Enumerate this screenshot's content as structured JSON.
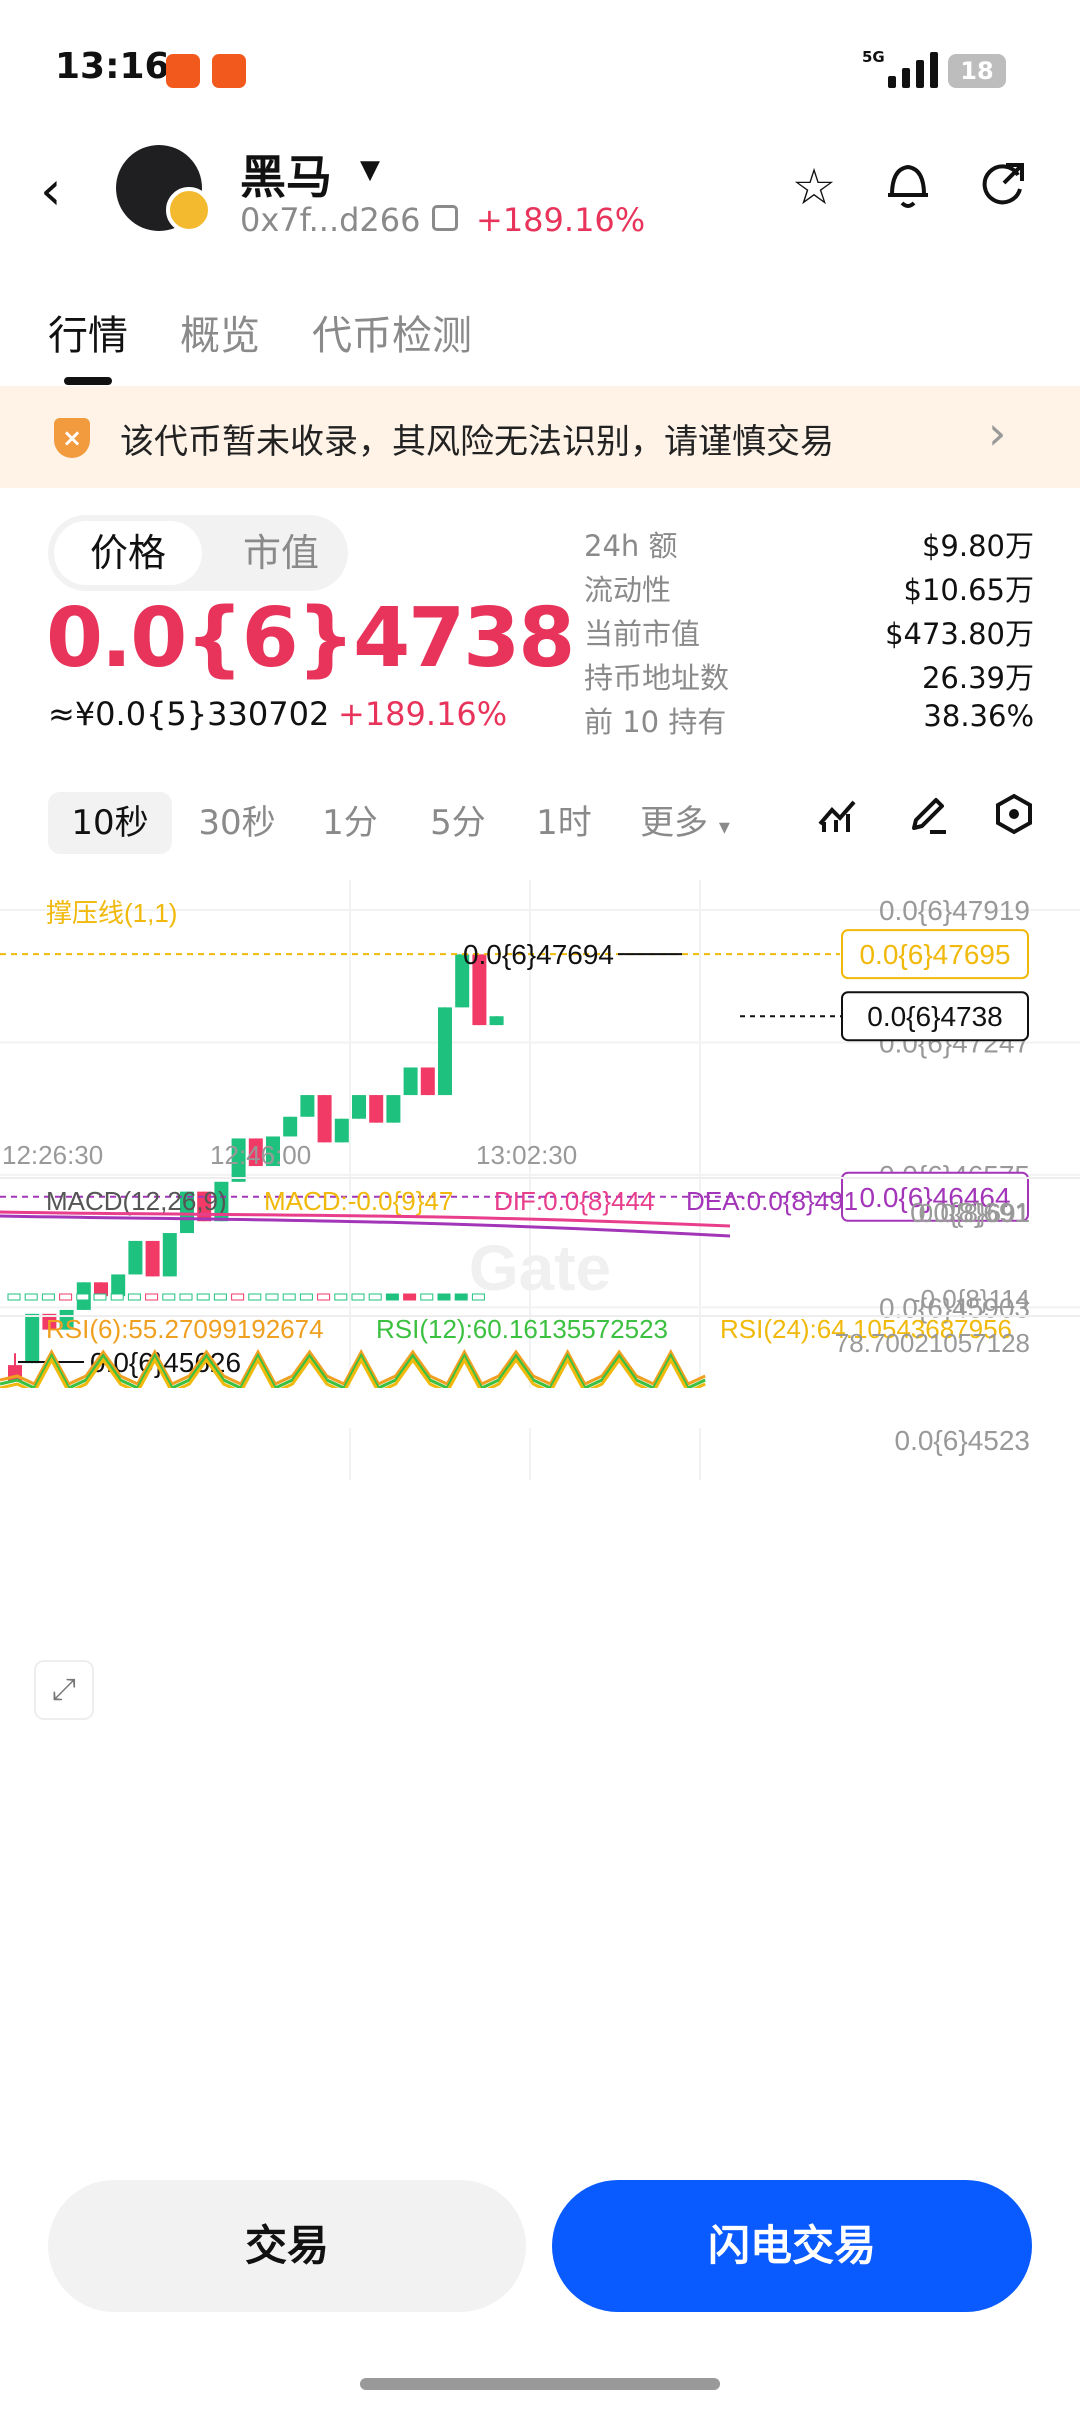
{
  "status_bar": {
    "time": "13:16",
    "network": "5G",
    "battery": "18"
  },
  "header": {
    "token_name": "黑马",
    "address": "0x7f...d266",
    "change": "+189.16%"
  },
  "tabs": [
    "行情",
    "概览",
    "代币检测"
  ],
  "notice": {
    "text": "该代币暂未收录，其风险无法识别，请谨慎交易"
  },
  "price_toggle": {
    "active": "价格",
    "inactive": "市值"
  },
  "price": {
    "value": "0.0{6}4738",
    "cny": "≈¥0.0{5}330702",
    "change": "+189.16%"
  },
  "stats": [
    {
      "label": "24h  额",
      "value": "$9.80万"
    },
    {
      "label": "流动性",
      "value": "$10.65万"
    },
    {
      "label": "当前市值",
      "value": "$473.80万"
    },
    {
      "label": "持币地址数",
      "value": "26.39万"
    },
    {
      "label": "前 10 持有",
      "value": "38.36%"
    }
  ],
  "intervals": [
    "10秒",
    "30秒",
    "1分",
    "5分",
    "1时",
    "更多"
  ],
  "chart": {
    "indicator_label": "撑压线(1,1)",
    "watermark": "Gate",
    "price_axis": [
      "0.0{6}47919",
      "0.0{6}47247",
      "0.0{6}46575",
      "0.0{6}45903",
      "0.0{6}4523"
    ],
    "resistance_label": "0.0{6}47695",
    "support_label": "0.0{6}46464",
    "current_label": "0.0{6}4738",
    "high_label": "0.0{6}47694",
    "low_label": "0.0{6}45626",
    "time_axis": [
      "12:26:30",
      "12:46:00",
      "13:02:30"
    ],
    "macd_legend": {
      "name": "MACD(12,26,9)",
      "macd": "MACD:-0.0{9}47",
      "dif": "DIF:0.0{8}444",
      "dea": "DEA:0.0{8}491"
    },
    "macd_axis": [
      "0.0{8}691",
      "-0.0{8}114"
    ],
    "rsi_legend": {
      "r6": "RSI(6):55.27099192674",
      "r12": "RSI(12):60.16135572523",
      "r24": "RSI(24):64.10543687956"
    },
    "rsi_axis": "78.70021057128",
    "colors": {
      "up": "#1fc17e",
      "down": "#f23a67",
      "resistance": "#f0b90b",
      "support": "#a235b8"
    }
  },
  "chart_data": {
    "type": "candlestick",
    "note_scale": "prices in units of 1e-7",
    "candles": [
      {
        "o": 4.561,
        "h": 4.567,
        "l": 4.553,
        "c": 4.553
      },
      {
        "o": 4.562,
        "h": 4.587,
        "l": 4.562,
        "c": 4.587
      },
      {
        "o": 4.587,
        "h": 4.587,
        "l": 4.579,
        "c": 4.579
      },
      {
        "o": 4.579,
        "h": 4.589,
        "l": 4.579,
        "c": 4.589
      },
      {
        "o": 4.589,
        "h": 4.603,
        "l": 4.589,
        "c": 4.603
      },
      {
        "o": 4.603,
        "h": 4.603,
        "l": 4.596,
        "c": 4.596
      },
      {
        "o": 4.596,
        "h": 4.607,
        "l": 4.596,
        "c": 4.607
      },
      {
        "o": 4.607,
        "h": 4.624,
        "l": 4.607,
        "c": 4.624
      },
      {
        "o": 4.624,
        "h": 4.624,
        "l": 4.606,
        "c": 4.606
      },
      {
        "o": 4.606,
        "h": 4.628,
        "l": 4.606,
        "c": 4.628
      },
      {
        "o": 4.628,
        "h": 4.649,
        "l": 4.628,
        "c": 4.649
      },
      {
        "o": 4.649,
        "h": 4.649,
        "l": 4.634,
        "c": 4.634
      },
      {
        "o": 4.634,
        "h": 4.654,
        "l": 4.634,
        "c": 4.654
      },
      {
        "o": 4.654,
        "h": 4.676,
        "l": 4.654,
        "c": 4.676
      },
      {
        "o": 4.676,
        "h": 4.676,
        "l": 4.662,
        "c": 4.662
      },
      {
        "o": 4.662,
        "h": 4.677,
        "l": 4.662,
        "c": 4.677
      },
      {
        "o": 4.677,
        "h": 4.687,
        "l": 4.677,
        "c": 4.687
      },
      {
        "o": 4.687,
        "h": 4.698,
        "l": 4.687,
        "c": 4.698
      },
      {
        "o": 4.698,
        "h": 4.698,
        "l": 4.674,
        "c": 4.674
      },
      {
        "o": 4.674,
        "h": 4.686,
        "l": 4.674,
        "c": 4.686
      },
      {
        "o": 4.686,
        "h": 4.698,
        "l": 4.686,
        "c": 4.698
      },
      {
        "o": 4.698,
        "h": 4.698,
        "l": 4.684,
        "c": 4.684
      },
      {
        "o": 4.684,
        "h": 4.698,
        "l": 4.684,
        "c": 4.698
      },
      {
        "o": 4.698,
        "h": 4.712,
        "l": 4.698,
        "c": 4.712
      },
      {
        "o": 4.712,
        "h": 4.712,
        "l": 4.698,
        "c": 4.698
      },
      {
        "o": 4.698,
        "h": 4.7425,
        "l": 4.698,
        "c": 4.7425
      },
      {
        "o": 4.7425,
        "h": 4.7694,
        "l": 4.7425,
        "c": 4.7694
      },
      {
        "o": 4.7694,
        "h": 4.7694,
        "l": 4.7335,
        "c": 4.7335
      },
      {
        "o": 4.7335,
        "h": 4.738,
        "l": 4.7335,
        "c": 4.738
      }
    ]
  }
}
